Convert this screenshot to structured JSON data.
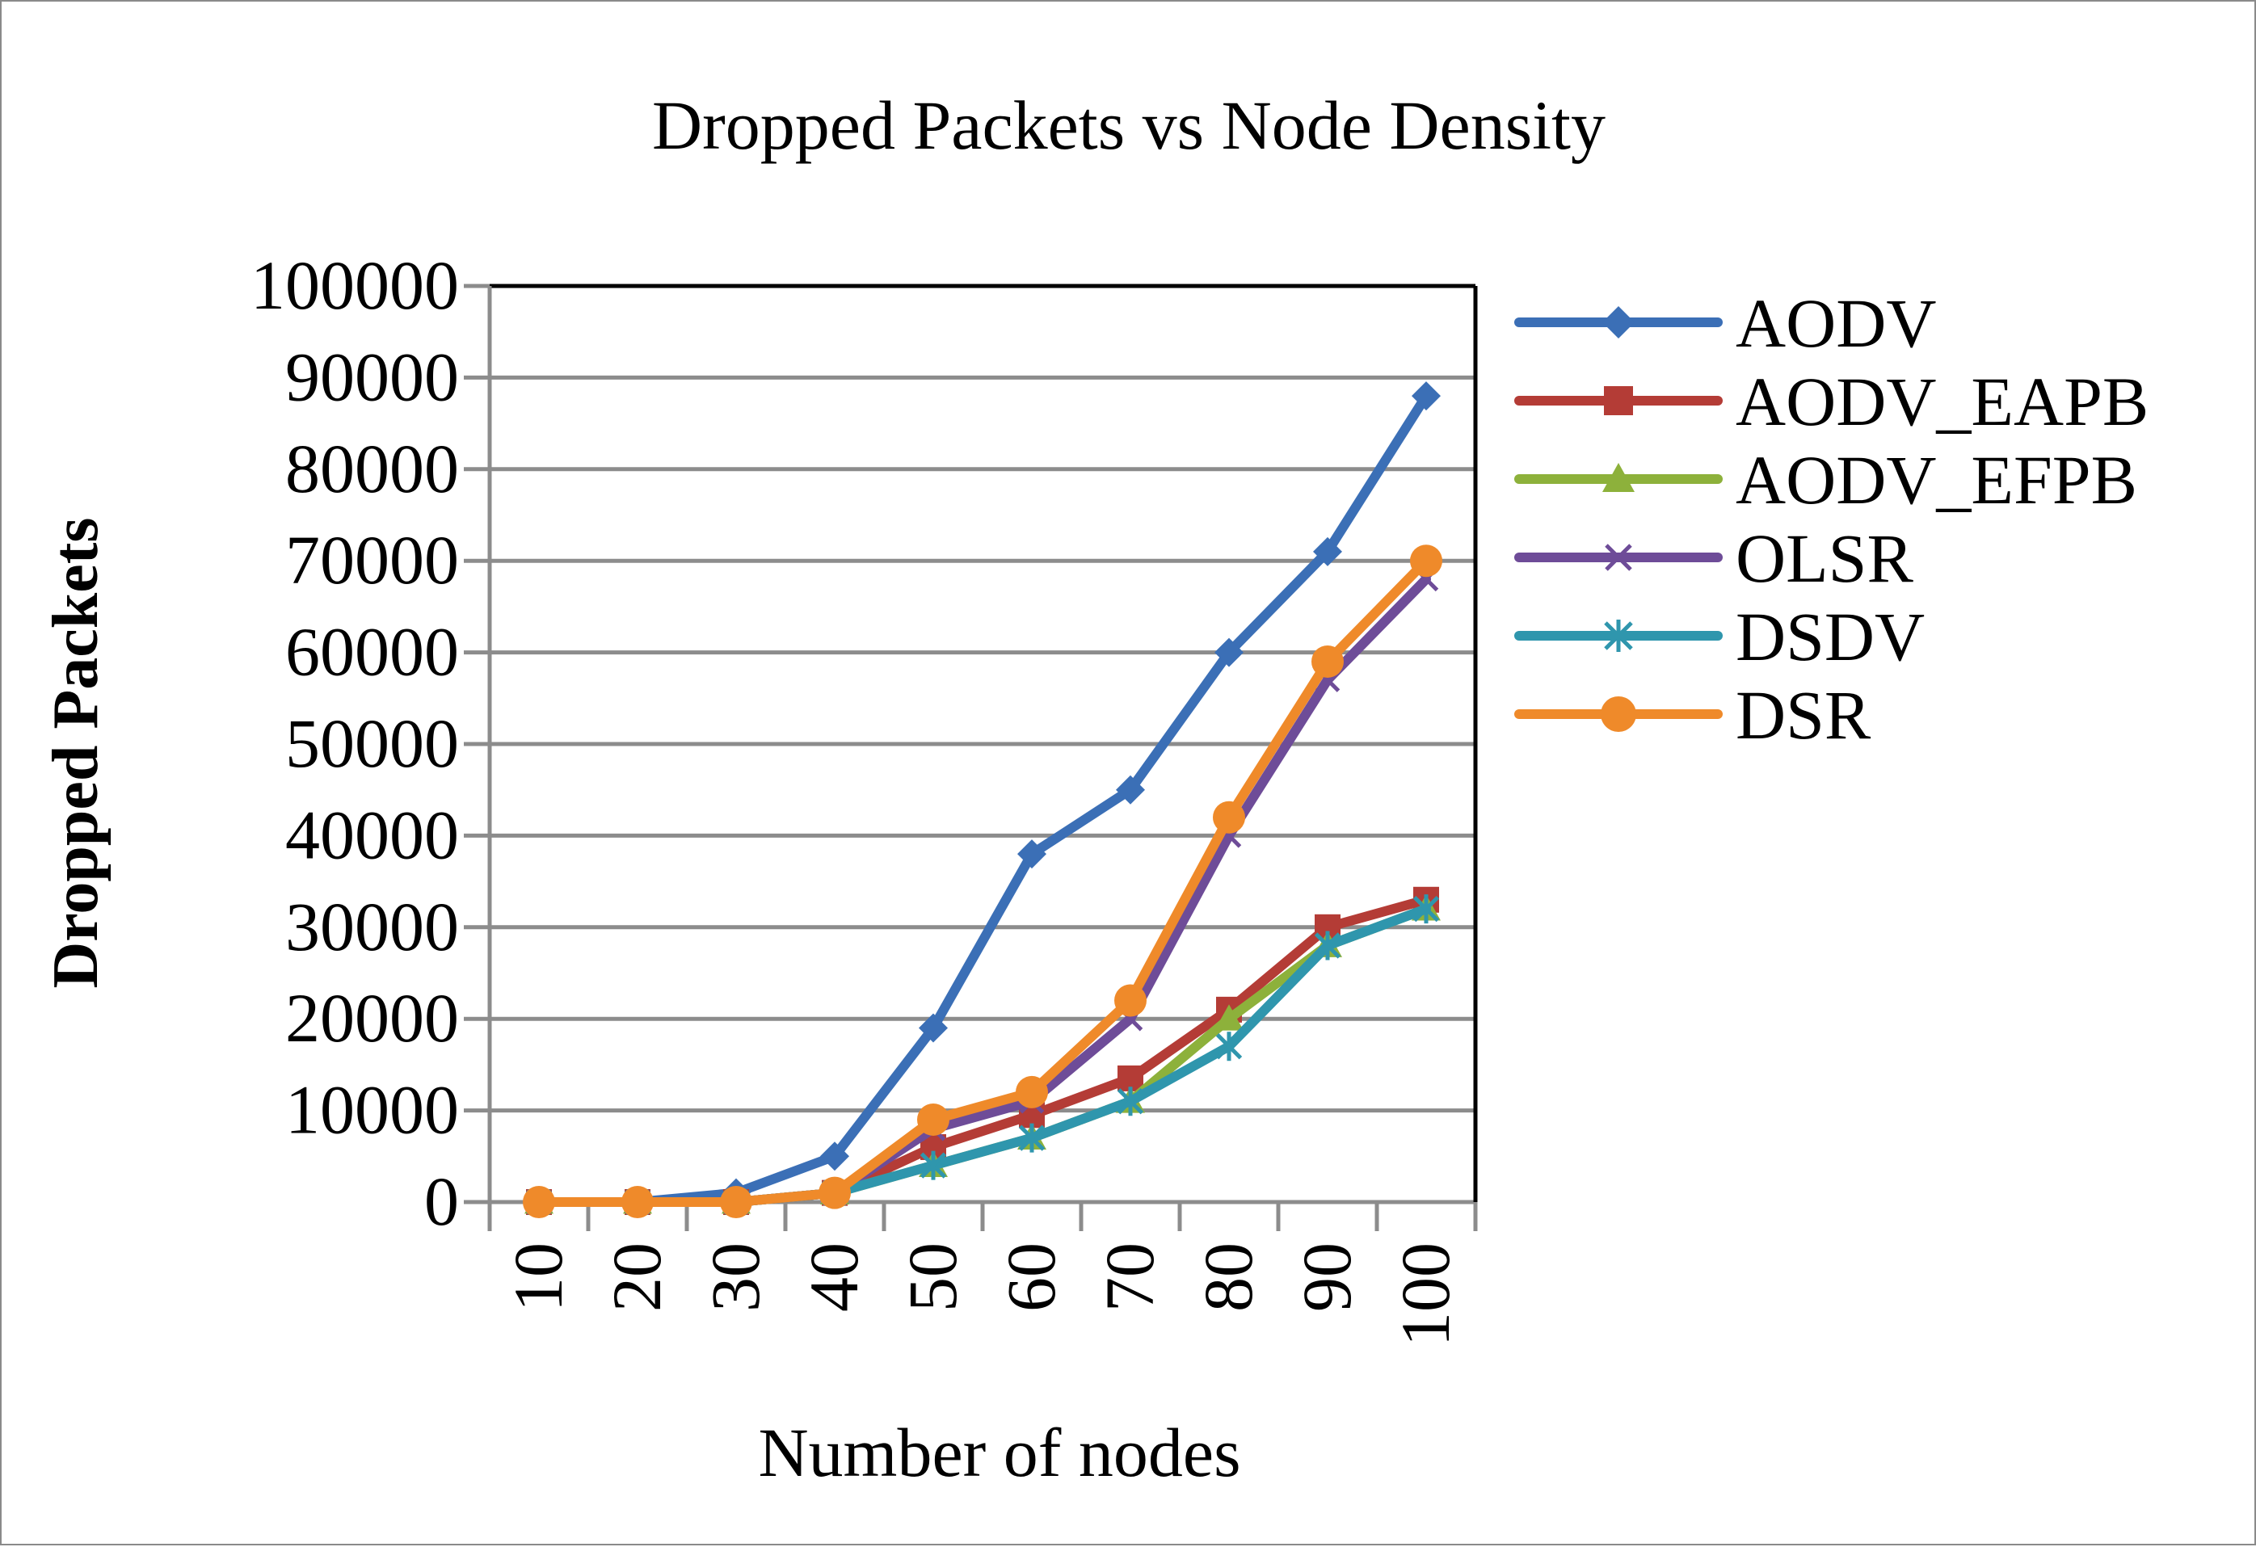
{
  "chart_data": {
    "type": "line",
    "title": "Dropped Packets vs Node Density",
    "xlabel": "Number of nodes",
    "ylabel": "Dropped Packets",
    "categories": [
      "10",
      "20",
      "30",
      "40",
      "50",
      "60",
      "70",
      "80",
      "90",
      "100"
    ],
    "ylim": [
      0,
      100000
    ],
    "yticks": [
      0,
      10000,
      20000,
      30000,
      40000,
      50000,
      60000,
      70000,
      80000,
      90000,
      100000
    ],
    "grid": "horizontal",
    "legend_position": "right",
    "series": [
      {
        "name": "AODV",
        "color": "#3b6fb6",
        "marker": "diamond",
        "values": [
          0,
          0,
          1000,
          5000,
          19000,
          38000,
          45000,
          60000,
          71000,
          88000
        ]
      },
      {
        "name": "AODV_EAPB",
        "color": "#b43c36",
        "marker": "square",
        "values": [
          0,
          0,
          0,
          1000,
          6000,
          9500,
          13500,
          21000,
          30000,
          33000
        ]
      },
      {
        "name": "AODV_EFPB",
        "color": "#8db13b",
        "marker": "triangle",
        "values": [
          0,
          0,
          0,
          1000,
          4000,
          7000,
          11000,
          20000,
          28000,
          32000
        ]
      },
      {
        "name": "OLSR",
        "color": "#6e4c98",
        "marker": "x",
        "values": [
          0,
          0,
          0,
          1000,
          8000,
          11000,
          20000,
          40000,
          57000,
          68000
        ]
      },
      {
        "name": "DSDV",
        "color": "#2f96ad",
        "marker": "star",
        "values": [
          0,
          0,
          0,
          1000,
          4000,
          7000,
          11000,
          17000,
          28000,
          32000
        ]
      },
      {
        "name": "DSR",
        "color": "#ef8a2a",
        "marker": "circle",
        "values": [
          0,
          0,
          0,
          1000,
          9000,
          12000,
          22000,
          42000,
          59000,
          70000
        ]
      }
    ]
  }
}
